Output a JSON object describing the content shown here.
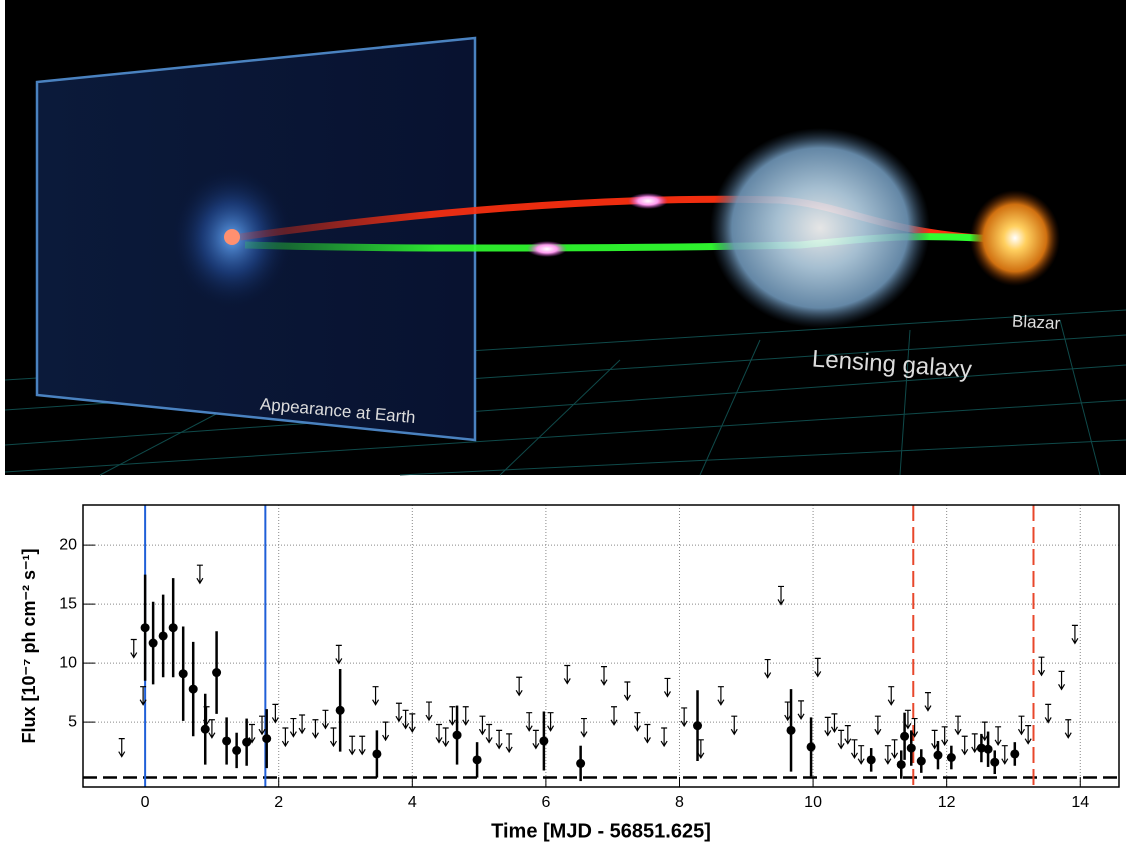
{
  "illustration": {
    "labels": [
      "Appearance at Earth",
      "Lensing galaxy",
      "Blazar"
    ]
  },
  "chart_data": {
    "type": "errorbar",
    "x_label": "Time [MJD - 56851.625]",
    "y_label": "Flux [10⁻⁷ ph cm⁻² s⁻¹]",
    "xlim": [
      -0.93,
      14.58
    ],
    "ylim": [
      -0.5,
      23.4
    ],
    "xticks": [
      0,
      2,
      4,
      6,
      8,
      10,
      12,
      14
    ],
    "yticks": [
      5,
      10,
      15,
      20
    ],
    "grid": true,
    "baseline": 0.3,
    "vlines": [
      {
        "value": 0,
        "color": "#1f5fd8",
        "dashed": false
      },
      {
        "value": 1.8,
        "color": "#1f5fd8",
        "dashed": false
      },
      {
        "value": 11.5,
        "color": "#e8472b",
        "dashed": true
      },
      {
        "value": 13.3,
        "color": "#e8472b",
        "dashed": true
      }
    ],
    "series": [
      {
        "kind": "points",
        "color": "#000000",
        "x": [
          0.0,
          0.12,
          0.27,
          0.42,
          0.57,
          0.72,
          0.9,
          1.07,
          1.22,
          1.37,
          1.52,
          1.82,
          2.92,
          3.47,
          4.67,
          4.97,
          5.97,
          6.52,
          8.27,
          9.67,
          9.97,
          10.87,
          11.32,
          11.37,
          11.47,
          11.62,
          11.87,
          12.07,
          12.52,
          12.62,
          12.72,
          13.02
        ],
        "values": [
          13,
          11.7,
          12.3,
          13,
          9.1,
          7.8,
          4.4,
          9.2,
          3.4,
          2.6,
          3.3,
          3.6,
          6,
          2.3,
          3.9,
          1.8,
          3.4,
          1.5,
          4.7,
          4.3,
          2.9,
          1.8,
          1.4,
          3.8,
          2.8,
          1.7,
          2.2,
          2,
          2.8,
          2.7,
          1.6,
          2.3
        ],
        "errors": [
          4.5,
          3.5,
          3.5,
          4.2,
          4,
          4,
          3,
          3.5,
          2,
          1.5,
          2,
          2.5,
          3.5,
          2,
          2.5,
          1.5,
          2.5,
          1.5,
          3,
          3.5,
          2.5,
          1,
          1.2,
          2,
          1.5,
          1,
          1.2,
          1,
          1.2,
          1.5,
          1,
          1
        ]
      },
      {
        "kind": "upper_limits",
        "color": "#000000",
        "x": [
          -0.35,
          -0.17,
          -0.03,
          0.82,
          0.92,
          1.0,
          1.6,
          1.75,
          1.95,
          2.1,
          2.22,
          2.35,
          2.55,
          2.7,
          2.82,
          2.9,
          3.1,
          3.25,
          3.45,
          3.6,
          3.8,
          3.9,
          4.0,
          4.25,
          4.4,
          4.5,
          4.6,
          4.8,
          5.05,
          5.15,
          5.3,
          5.45,
          5.6,
          5.75,
          5.85,
          6.07,
          6.32,
          6.57,
          6.87,
          7.02,
          7.22,
          7.37,
          7.52,
          7.77,
          7.82,
          8.07,
          8.32,
          8.62,
          8.82,
          9.32,
          9.52,
          9.62,
          9.82,
          10.07,
          10.22,
          10.32,
          10.42,
          10.52,
          10.62,
          10.72,
          10.97,
          11.12,
          11.17,
          11.22,
          11.42,
          11.52,
          11.72,
          11.82,
          11.97,
          12.17,
          12.27,
          12.42,
          12.57,
          12.77,
          12.87,
          13.12,
          13.22,
          13.42,
          13.52,
          13.72,
          13.82,
          13.92
        ],
        "values": [
          3.6,
          12,
          8,
          18.3,
          6.3,
          5.2,
          4.8,
          5.5,
          6.5,
          4.5,
          5.3,
          5.6,
          5.2,
          6,
          4.5,
          11.5,
          3.8,
          3.8,
          8,
          5,
          6.6,
          6,
          5.7,
          6.7,
          4.8,
          4.5,
          6.3,
          6.3,
          5.5,
          4.8,
          4.3,
          4,
          8.8,
          5.8,
          4.3,
          5.8,
          9.8,
          5.3,
          9.7,
          6.3,
          8.4,
          5.8,
          4.8,
          4.5,
          8.7,
          6.2,
          3.5,
          8,
          5.5,
          10.3,
          16.5,
          6.7,
          6.8,
          10.4,
          5.4,
          5.7,
          4.3,
          4.7,
          3.5,
          3,
          5.5,
          3,
          8,
          3.5,
          6,
          5.3,
          7.5,
          4.3,
          4.6,
          5.5,
          3.8,
          4,
          5,
          4.6,
          3,
          5.5,
          4.7,
          10.5,
          6.5,
          9.3,
          5.2,
          13.2
        ]
      }
    ]
  }
}
